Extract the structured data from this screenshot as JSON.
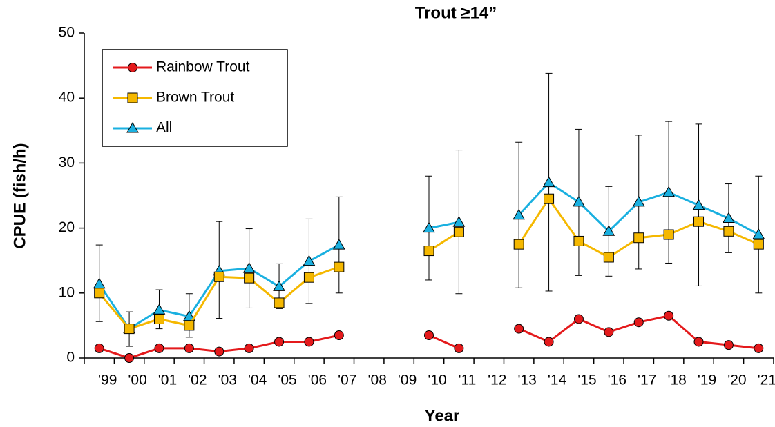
{
  "chart_data": {
    "type": "line",
    "title": "Trout ≥14”",
    "x_label": "Year",
    "y_label": "CPUE (fish/h)",
    "categories": [
      "'99",
      "'00",
      "'01",
      "'02",
      "'03",
      "'04",
      "'05",
      "'06",
      "'07",
      "'08",
      "'09",
      "'10",
      "'11",
      "'12",
      "'13",
      "'14",
      "'15",
      "'16",
      "'17",
      "'18",
      "'19",
      "'20",
      "'21"
    ],
    "ylim": [
      0,
      50
    ],
    "yticks": [
      0,
      10,
      20,
      30,
      40,
      50
    ],
    "legend": "upper left",
    "series": [
      {
        "name": "Rainbow Trout",
        "color": "#e41a1c",
        "marker": "circle",
        "values": [
          1.5,
          0,
          1.5,
          1.5,
          1,
          1.5,
          2.5,
          2.5,
          3.5,
          null,
          null,
          3.5,
          1.5,
          null,
          4.5,
          2.5,
          6,
          4,
          5.5,
          6.5,
          2.5,
          2,
          1.5
        ]
      },
      {
        "name": "Brown Trout",
        "color": "#f5b800",
        "marker": "square",
        "values": [
          10,
          4.5,
          6,
          5,
          12.5,
          12.3,
          8.5,
          12.4,
          14,
          null,
          null,
          16.5,
          19.4,
          null,
          17.5,
          24.5,
          18,
          15.5,
          18.5,
          19,
          21,
          19.5,
          17.5
        ]
      },
      {
        "name": "All",
        "color": "#1ab0e0",
        "marker": "triangle",
        "values": [
          11.4,
          4.5,
          7.4,
          6.4,
          13.4,
          13.8,
          11,
          14.9,
          17.4,
          null,
          null,
          20,
          20.9,
          null,
          22,
          27,
          24,
          19.5,
          24,
          25.5,
          23.5,
          21.5,
          19
        ],
        "error_high": [
          17.4,
          7.1,
          10.5,
          9.9,
          21,
          19.9,
          14.5,
          21.4,
          24.8,
          null,
          null,
          28,
          32,
          null,
          33.2,
          43.8,
          35.2,
          26.4,
          34.3,
          36.4,
          36,
          26.8,
          28
        ],
        "error_low": [
          5.6,
          1.8,
          4.5,
          3.2,
          6.1,
          7.7,
          7.6,
          8.4,
          10,
          null,
          null,
          12,
          9.9,
          null,
          10.8,
          10.3,
          12.7,
          12.6,
          13.7,
          14.6,
          11.1,
          16.2,
          10
        ]
      }
    ]
  }
}
